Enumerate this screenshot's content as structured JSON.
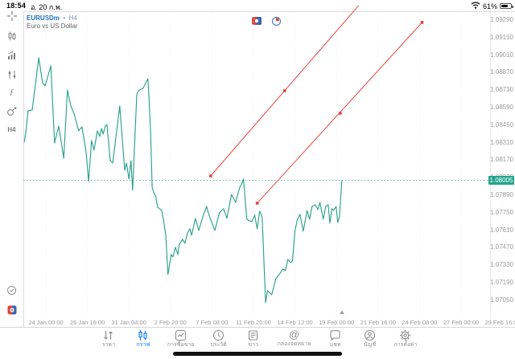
{
  "status_bar": {
    "time": "18:54",
    "date": "อ. 20 ก.พ.",
    "battery_percent": "61%"
  },
  "header": {
    "symbol": "EURUSDm",
    "separator": "•",
    "timeframe": "H4",
    "description": "Euro vs US Dollar"
  },
  "sidebar": {
    "timeframe_label": "H4"
  },
  "price_scale": {
    "current_price_label": "1.08005"
  },
  "chart_data": {
    "type": "line",
    "title": "EURUSDm H4",
    "subtitle": "Euro vs US Dollar",
    "legend": "off",
    "grid": "minimal",
    "line_color": "#2ba18c",
    "trend_color": "#e8423c",
    "current_price": 1.08005,
    "last_bar_t": 7.13,
    "y_ticks": [
      "1.09290",
      "1.09150",
      "1.09010",
      "1.08870",
      "1.08730",
      "1.08590",
      "1.08450",
      "1.08310",
      "1.08170",
      "1.08030",
      "1.07890",
      "1.07750",
      "1.07610",
      "1.07470",
      "1.07330",
      "1.07190",
      "1.07050"
    ],
    "x_ticks": [
      "24 Jan 00:00",
      "26 Jan 16:00",
      "31 Jan 04:00",
      "2 Feb 20:00",
      "7 Feb 08:00",
      "11 Feb 20:00",
      "14 Feb 12:00",
      "19 Feb 00:00",
      "21 Feb 16:00",
      "24 Feb 08:00",
      "27 Feb 00:00",
      "29 Feb 16:00"
    ],
    "series": [
      {
        "name": "EURUSDm close",
        "points": [
          [
            -0.52,
            1.08311
          ],
          [
            -0.47,
            1.0842
          ],
          [
            -0.43,
            1.08561
          ],
          [
            -0.33,
            1.08568
          ],
          [
            -0.17,
            1.08985
          ],
          [
            -0.08,
            1.08786
          ],
          [
            -0.02,
            1.0876
          ],
          [
            0.12,
            1.08921
          ],
          [
            0.21,
            1.08304
          ],
          [
            0.31,
            1.08439
          ],
          [
            0.43,
            1.08182
          ],
          [
            0.52,
            1.08728
          ],
          [
            0.6,
            1.086
          ],
          [
            0.68,
            1.08536
          ],
          [
            0.76,
            1.08439
          ],
          [
            0.79,
            1.08401
          ],
          [
            0.87,
            1.08433
          ],
          [
            0.97,
            1.08227
          ],
          [
            1.03,
            1.07996
          ],
          [
            1.1,
            1.08324
          ],
          [
            1.16,
            1.08247
          ],
          [
            1.24,
            1.08401
          ],
          [
            1.3,
            1.08356
          ],
          [
            1.34,
            1.0842
          ],
          [
            1.38,
            1.08375
          ],
          [
            1.43,
            1.08439
          ],
          [
            1.47,
            1.08452
          ],
          [
            1.55,
            1.08163
          ],
          [
            1.61,
            1.08144
          ],
          [
            1.78,
            1.086
          ],
          [
            1.9,
            1.08086
          ],
          [
            1.94,
            1.08144
          ],
          [
            2.0,
            1.08016
          ],
          [
            2.05,
            1.08163
          ],
          [
            2.09,
            1.07926
          ],
          [
            2.19,
            1.08696
          ],
          [
            2.25,
            1.08728
          ],
          [
            2.34,
            1.08741
          ],
          [
            2.46,
            1.08818
          ],
          [
            2.52,
            1.0842
          ],
          [
            2.56,
            1.07951
          ],
          [
            2.6,
            1.07906
          ],
          [
            2.65,
            1.07874
          ],
          [
            2.69,
            1.07791
          ],
          [
            2.79,
            1.07765
          ],
          [
            2.83,
            1.07695
          ],
          [
            2.89,
            1.07566
          ],
          [
            2.94,
            1.07252
          ],
          [
            3.02,
            1.07412
          ],
          [
            3.06,
            1.07393
          ],
          [
            3.12,
            1.0747
          ],
          [
            3.18,
            1.07412
          ],
          [
            3.21,
            1.07489
          ],
          [
            3.29,
            1.07534
          ],
          [
            3.35,
            1.07502
          ],
          [
            3.41,
            1.07586
          ],
          [
            3.47,
            1.07618
          ],
          [
            3.51,
            1.07566
          ],
          [
            3.6,
            1.07701
          ],
          [
            3.68,
            1.07605
          ],
          [
            3.8,
            1.07733
          ],
          [
            3.87,
            1.07797
          ],
          [
            3.93,
            1.07727
          ],
          [
            4.07,
            1.07605
          ],
          [
            4.18,
            1.07746
          ],
          [
            4.28,
            1.07778
          ],
          [
            4.36,
            1.07701
          ],
          [
            4.47,
            1.07893
          ],
          [
            4.57,
            1.07829
          ],
          [
            4.67,
            1.07951
          ],
          [
            4.71,
            1.07971
          ],
          [
            4.76,
            1.08016
          ],
          [
            4.84,
            1.07695
          ],
          [
            4.9,
            1.07682
          ],
          [
            4.96,
            1.07676
          ],
          [
            5.03,
            1.07727
          ],
          [
            5.09,
            1.07618
          ],
          [
            5.15,
            1.07759
          ],
          [
            5.21,
            1.07714
          ],
          [
            5.29,
            1.07027
          ],
          [
            5.34,
            1.07123
          ],
          [
            5.44,
            1.07091
          ],
          [
            5.54,
            1.0722
          ],
          [
            5.62,
            1.07252
          ],
          [
            5.71,
            1.07297
          ],
          [
            5.77,
            1.07284
          ],
          [
            5.83,
            1.07374
          ],
          [
            5.89,
            1.07348
          ],
          [
            5.94,
            1.07361
          ],
          [
            6.0,
            1.07605
          ],
          [
            6.06,
            1.07695
          ],
          [
            6.12,
            1.07733
          ],
          [
            6.2,
            1.07599
          ],
          [
            6.29,
            1.07765
          ],
          [
            6.35,
            1.07695
          ],
          [
            6.41,
            1.07797
          ],
          [
            6.49,
            1.0781
          ],
          [
            6.55,
            1.07772
          ],
          [
            6.6,
            1.07829
          ],
          [
            6.68,
            1.07695
          ],
          [
            6.74,
            1.07797
          ],
          [
            6.8,
            1.0781
          ],
          [
            6.84,
            1.07663
          ],
          [
            6.89,
            1.07778
          ],
          [
            6.93,
            1.07765
          ],
          [
            6.99,
            1.07797
          ],
          [
            7.03,
            1.07669
          ],
          [
            7.07,
            1.07714
          ],
          [
            7.13,
            1.08005
          ]
        ]
      }
    ],
    "trend_lines": [
      {
        "from": [
          3.97,
          1.08041
        ],
        "to": [
          7.53,
          1.09402
        ],
        "dots": [
          [
            3.97,
            1.08041
          ],
          [
            5.75,
            1.08722
          ]
        ]
      },
      {
        "from": [
          5.09,
          1.07823
        ],
        "to": [
          9.06,
          1.09268
        ],
        "dots": [
          [
            5.09,
            1.07823
          ],
          [
            7.09,
            1.08542
          ],
          [
            9.06,
            1.09268
          ]
        ]
      }
    ]
  },
  "toolbar": {
    "items": [
      {
        "label": "ราคา",
        "icon": "quotes-icon",
        "active": false
      },
      {
        "label": "กราฟ",
        "icon": "chart-icon",
        "active": true
      },
      {
        "label": "การซื้อขาย",
        "icon": "trade-icon",
        "active": false
      },
      {
        "label": "ประวัติ",
        "icon": "history-icon",
        "active": false
      },
      {
        "label": "ข่าว",
        "icon": "news-icon",
        "active": false
      },
      {
        "label": "กล่องจดหมาย",
        "icon": "mailbox-icon",
        "active": false
      },
      {
        "label": "แชท",
        "icon": "chat-icon",
        "active": false
      },
      {
        "label": "บัญชี",
        "icon": "account-icon",
        "active": false
      },
      {
        "label": "การตั้งค่า",
        "icon": "settings-icon",
        "active": false
      }
    ]
  }
}
